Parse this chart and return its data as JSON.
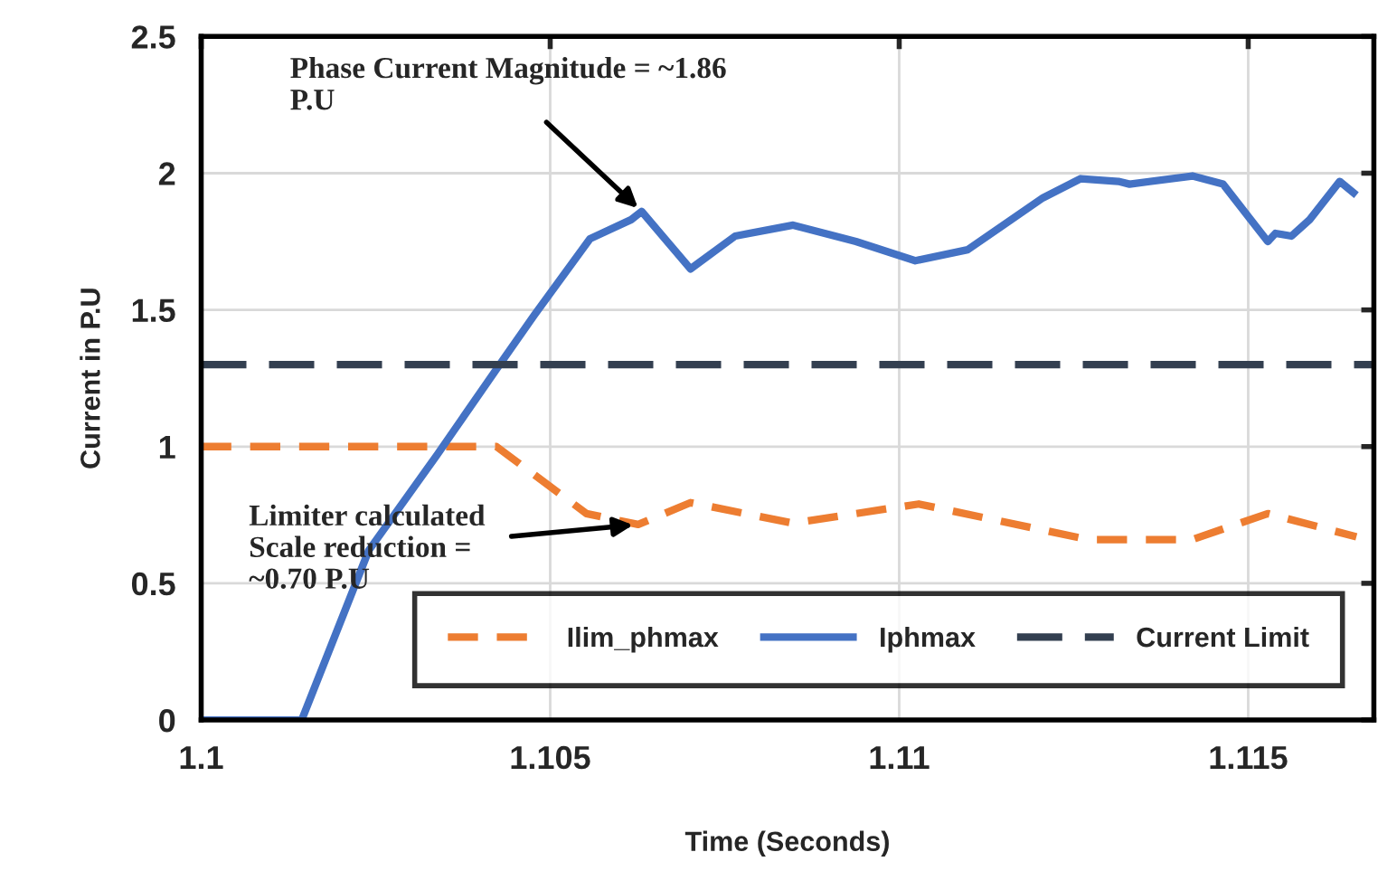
{
  "chart_data": {
    "type": "line",
    "xlabel": "Time (Seconds)",
    "ylabel": "Current in P.U",
    "xlim": [
      1.1,
      1.1168
    ],
    "ylim": [
      0,
      2.5
    ],
    "xticks": [
      1.1,
      1.105,
      1.11,
      1.115
    ],
    "yticks": [
      0,
      0.5,
      1,
      1.5,
      2,
      2.5
    ],
    "grid": true,
    "legend": "bottom right",
    "series": [
      {
        "name": "Ilim_phmax",
        "color": "#ed7d31",
        "line_style": "dashed",
        "x": [
          1.1,
          1.10423,
          1.10552,
          1.10626,
          1.10701,
          1.10848,
          1.11028,
          1.11271,
          1.1142,
          1.11528,
          1.11655
        ],
        "values": [
          1.0,
          1.0,
          0.755,
          0.715,
          0.795,
          0.72,
          0.79,
          0.66,
          0.66,
          0.755,
          0.67
        ]
      },
      {
        "name": "Iphmax",
        "color": "#4472c4",
        "line_style": "solid",
        "x": [
          1.1,
          1.10144,
          1.1024,
          1.10338,
          1.10433,
          1.10477,
          1.10557,
          1.10616,
          1.10631,
          1.10701,
          1.10765,
          1.10848,
          1.10938,
          1.11023,
          1.11098,
          1.11206,
          1.1126,
          1.11314,
          1.1133,
          1.1142,
          1.11464,
          1.11528,
          1.11539,
          1.11562,
          1.11588,
          1.11631,
          1.11655
        ],
        "values": [
          0,
          0,
          0.62,
          0.97,
          1.32,
          1.48,
          1.76,
          1.83,
          1.86,
          1.65,
          1.77,
          1.81,
          1.75,
          1.68,
          1.72,
          1.91,
          1.98,
          1.97,
          1.96,
          1.99,
          1.96,
          1.75,
          1.78,
          1.77,
          1.83,
          1.97,
          1.92
        ]
      },
      {
        "name": "Current Limit",
        "color": "#333f50",
        "line_style": "dashed",
        "x": [
          1.1,
          1.1168
        ],
        "values": [
          1.3,
          1.3
        ]
      }
    ],
    "annotations": [
      {
        "text": "Phase Current Magnitude = ~1.86\nP.U",
        "x": 1.10631,
        "y": 1.86
      },
      {
        "text": "Limiter calculated\nScale reduction =\n~0.70 P.U",
        "x": 1.10626,
        "y": 0.715
      }
    ]
  }
}
